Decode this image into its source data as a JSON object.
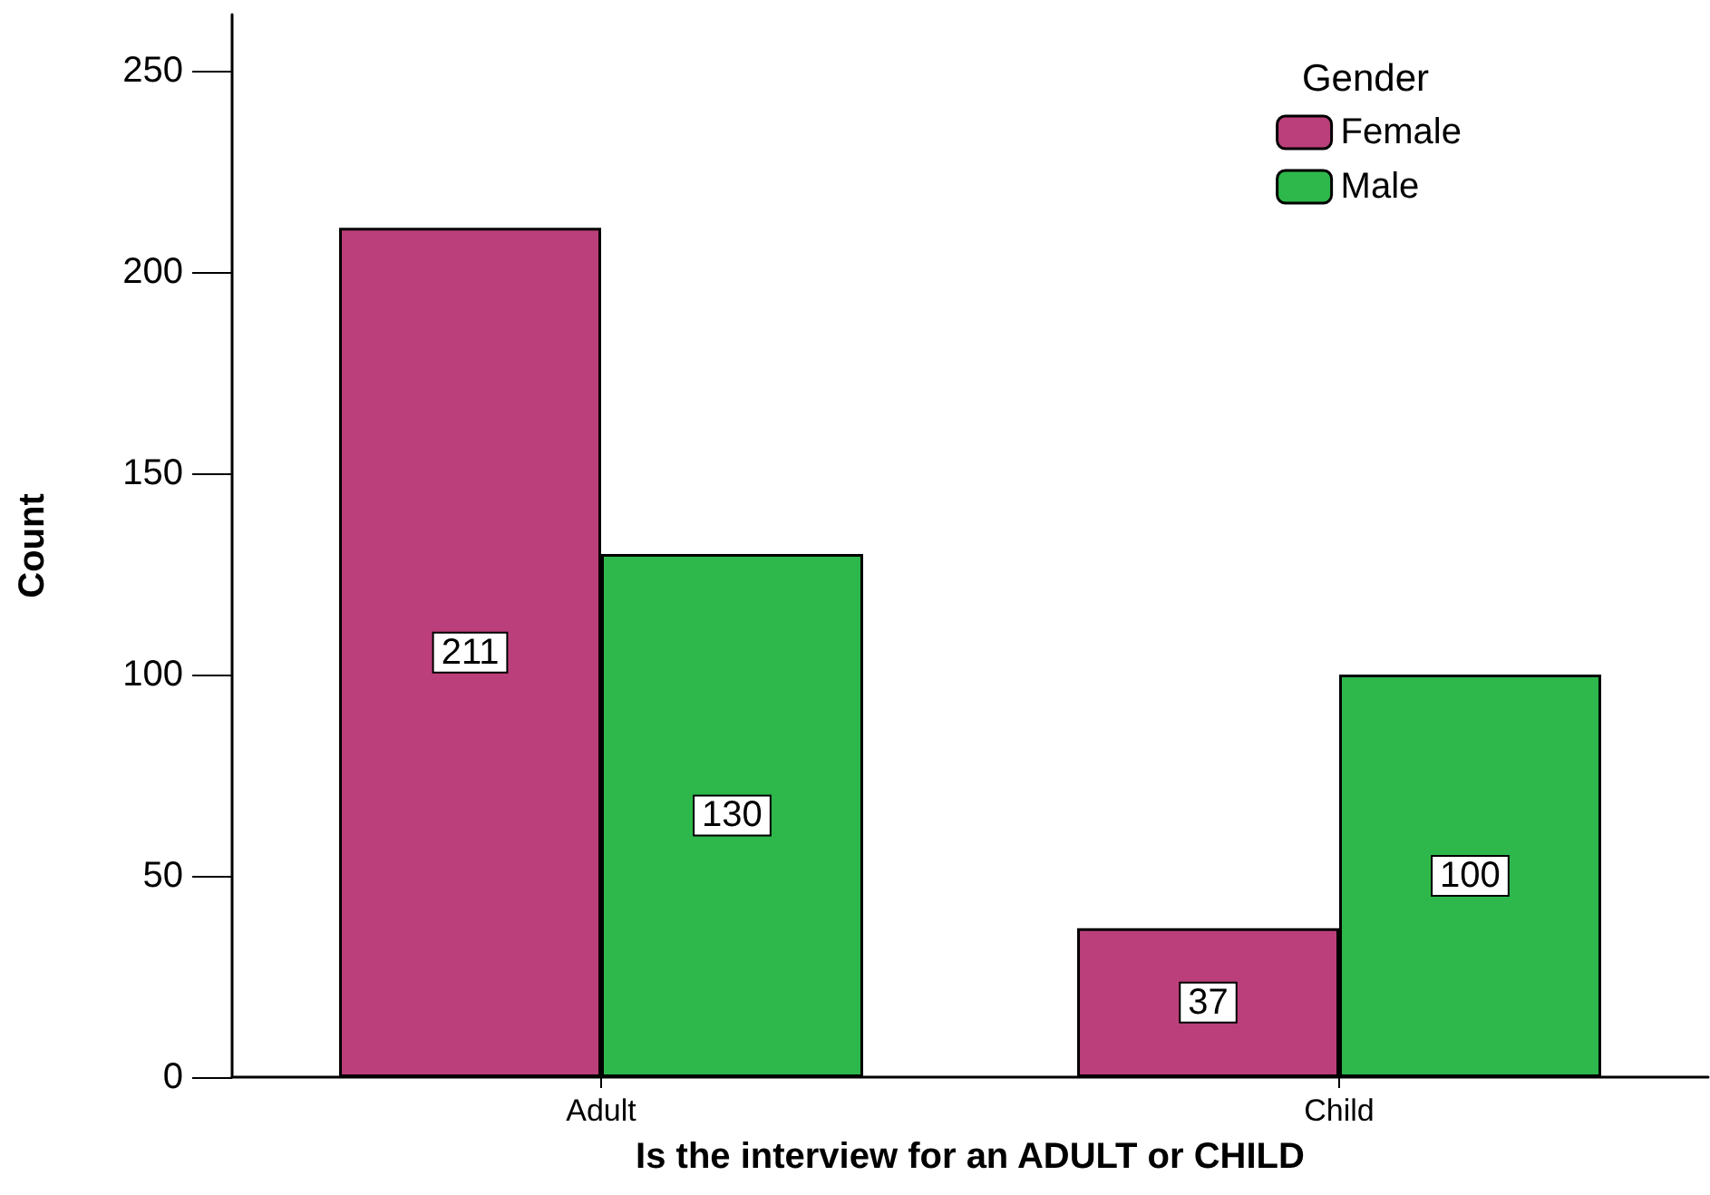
{
  "chart_data": {
    "type": "bar",
    "xlabel": "Is the interview for an ADULT or CHILD",
    "ylabel": "Count",
    "legend_title": "Gender",
    "categories": [
      "Adult",
      "Child"
    ],
    "series": [
      {
        "name": "Female",
        "color": "#bb3f7a",
        "values": [
          211,
          37
        ]
      },
      {
        "name": "Male",
        "color": "#2eb84b",
        "values": [
          130,
          100
        ]
      }
    ],
    "ylim": [
      0,
      264
    ],
    "yticks": [
      0,
      50,
      100,
      150,
      200,
      250
    ],
    "grid": false,
    "legend": "top right",
    "data_labels": true
  }
}
